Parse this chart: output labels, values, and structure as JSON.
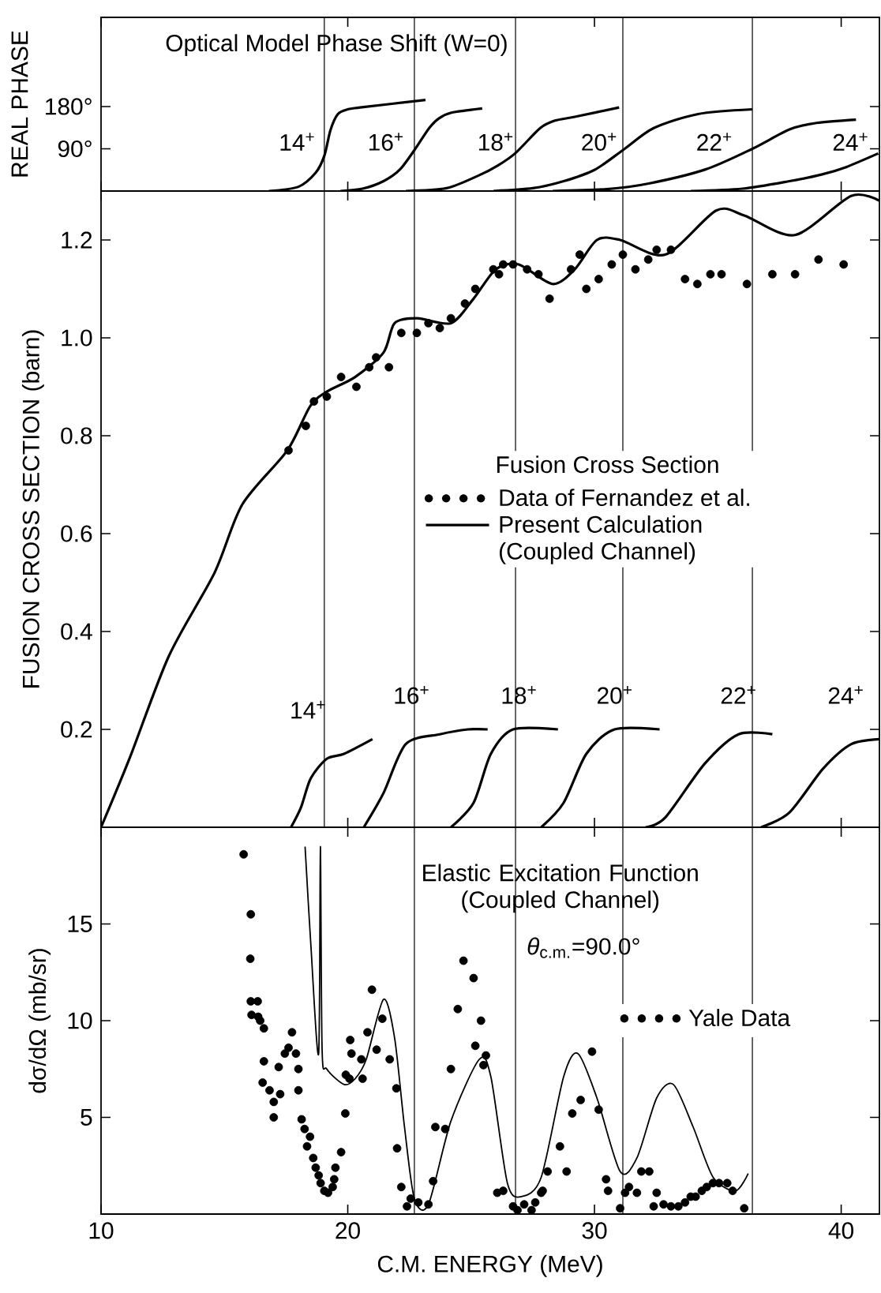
{
  "chart_data": [
    {
      "type": "line",
      "title": "Optical Model Phase Shift (W=0)",
      "ylabel": "REAL PHASE",
      "xlim": [
        10,
        41.55
      ],
      "ylim": [
        0,
        370
      ],
      "xticks": [
        10,
        20,
        30,
        40
      ],
      "yticks": [
        {
          "value": 90,
          "label": "90°"
        },
        {
          "value": 180,
          "label": "180°"
        }
      ],
      "tick_labels": "y",
      "annotations": [
        "14$^{+}$",
        "16$^{+}$",
        "18$^{+}$",
        "20$^{+}$",
        "22$^{+}$",
        "24$^{+}$"
      ],
      "ref_lines": [
        {
          "axis": "x",
          "value": 19.05
        },
        {
          "axis": "x",
          "value": 22.7
        },
        {
          "axis": "x",
          "value": 26.8
        },
        {
          "axis": "x",
          "value": 31.15
        },
        {
          "axis": "x",
          "value": 36.4
        }
      ],
      "series": [
        {
          "color": "#000000",
          "x": [
            16.8,
            18.0,
            18.7,
            19.05,
            19.3,
            19.6,
            20.0,
            20.5,
            23.15
          ],
          "values": [
            0,
            9,
            39,
            75,
            130,
            164,
            174,
            178,
            194
          ]
        },
        {
          "color": "#000000",
          "x": [
            19.7,
            20.6,
            21.45,
            22.1,
            22.7,
            23.3,
            23.7,
            24.2,
            25.45
          ],
          "values": [
            0,
            5,
            21,
            45,
            87,
            134,
            155,
            167,
            176
          ]
        },
        {
          "color": "#000000",
          "x": [
            22.35,
            24.0,
            25.3,
            26.1,
            26.8,
            27.8,
            28.4,
            29.2,
            31.0
          ],
          "values": [
            0,
            6,
            33,
            55,
            81,
            134,
            150,
            158,
            178
          ]
        },
        {
          "color": "#000000",
          "x": [
            25.9,
            27.5,
            28.75,
            30.0,
            31.15,
            32.4,
            34.2,
            36.4
          ],
          "values": [
            0,
            6,
            21,
            45,
            87,
            134,
            164,
            174
          ]
        },
        {
          "color": "#000000",
          "x": [
            28.3,
            30.5,
            32.2,
            34.5,
            36.4,
            37.9,
            39.0,
            40.6
          ],
          "values": [
            0,
            4,
            16,
            46,
            90,
            131,
            145,
            152
          ]
        },
        {
          "color": "#000000",
          "x": [
            33.9,
            36.0,
            37.9,
            39.2,
            40.2,
            41.5
          ],
          "values": [
            0,
            5,
            21,
            35,
            51,
            80
          ]
        }
      ]
    },
    {
      "type": "line",
      "ylabel": "FUSION CROSS SECTION (barn)",
      "legend_title": "Fusion Cross Section",
      "legend": "right",
      "xlim": [
        10,
        41.55
      ],
      "ylim": [
        0,
        1.3
      ],
      "xticks": [
        10,
        20,
        30,
        40
      ],
      "yticks": [
        {
          "value": 0.2,
          "label": "0.2"
        },
        {
          "value": 0.4,
          "label": "0.4"
        },
        {
          "value": 0.6,
          "label": "0.6"
        },
        {
          "value": 0.8,
          "label": "0.8"
        },
        {
          "value": 1.0,
          "label": "1.0"
        },
        {
          "value": 1.2,
          "label": "1.2"
        }
      ],
      "tick_labels": "y",
      "annotations": [
        "14$^{+}$",
        "16$^{+}$",
        "18$^{+}$",
        "20$^{+}$",
        "22$^{+}$",
        "24$^{+}$"
      ],
      "ref_lines": [
        {
          "axis": "x",
          "value": 19.05
        },
        {
          "axis": "x",
          "value": 22.7
        },
        {
          "axis": "x",
          "value": 26.8
        },
        {
          "axis": "x",
          "value": 31.15
        },
        {
          "axis": "x",
          "value": 36.4
        }
      ],
      "series": [
        {
          "name": "Data of Fernandez et al.",
          "type": "scatter",
          "marker": "circle",
          "color": "#000000",
          "x": [
            17.6,
            18.3,
            18.63,
            19.15,
            19.73,
            20.35,
            20.87,
            21.15,
            21.67,
            22.17,
            22.8,
            23.27,
            23.73,
            24.18,
            24.75,
            25.17,
            25.9,
            26.13,
            26.3,
            26.7,
            27.27,
            27.73,
            28.18,
            29.05,
            29.4,
            29.67,
            30.17,
            30.7,
            31.15,
            31.66,
            32.18,
            32.52,
            33.1,
            33.67,
            34.17,
            34.7,
            35.15,
            36.18,
            37.21,
            38.13,
            39.08,
            40.1
          ],
          "values": [
            0.77,
            0.82,
            0.87,
            0.88,
            0.92,
            0.9,
            0.94,
            0.96,
            0.94,
            1.01,
            1.01,
            1.03,
            1.02,
            1.04,
            1.07,
            1.1,
            1.14,
            1.13,
            1.15,
            1.15,
            1.14,
            1.13,
            1.08,
            1.14,
            1.17,
            1.1,
            1.12,
            1.15,
            1.17,
            1.14,
            1.16,
            1.18,
            1.18,
            1.12,
            1.11,
            1.13,
            1.13,
            1.11,
            1.13,
            1.13,
            1.16,
            1.15
          ]
        },
        {
          "name": "Present Calculation (Coupled Channel)",
          "color": "#000000",
          "x": [
            10.0,
            11.15,
            12.75,
            14.6,
            15.73,
            17.55,
            18.47,
            19.15,
            20.3,
            21.45,
            21.9,
            22.81,
            24.18,
            25.1,
            26.0,
            26.93,
            28.3,
            29.2,
            30.1,
            31.04,
            32.87,
            34.93,
            36.07,
            38.12,
            40.4,
            41.55
          ],
          "values": [
            0,
            0.14,
            0.35,
            0.52,
            0.66,
            0.77,
            0.86,
            0.89,
            0.92,
            0.97,
            1.03,
            1.04,
            1.03,
            1.08,
            1.14,
            1.15,
            1.11,
            1.14,
            1.2,
            1.2,
            1.17,
            1.26,
            1.25,
            1.21,
            1.29,
            1.28
          ]
        },
        {
          "color": "#000000",
          "x": [
            17.7,
            18.1,
            18.5,
            19.15,
            19.85,
            21.0
          ],
          "values": [
            0,
            0.04,
            0.1,
            0.14,
            0.15,
            0.18
          ]
        },
        {
          "color": "#000000",
          "x": [
            20.65,
            21.45,
            22.35,
            23.73,
            24.87,
            25.67
          ],
          "values": [
            0,
            0.07,
            0.17,
            0.19,
            0.2,
            0.2
          ]
        },
        {
          "color": "#000000",
          "x": [
            24.18,
            25.1,
            25.8,
            26.7,
            28.52
          ],
          "values": [
            0,
            0.05,
            0.15,
            0.2,
            0.2
          ]
        },
        {
          "color": "#000000",
          "x": [
            27.84,
            28.75,
            29.67,
            30.81,
            32.64
          ],
          "values": [
            0,
            0.05,
            0.15,
            0.2,
            0.2
          ]
        },
        {
          "color": "#000000",
          "x": [
            32.07,
            32.87,
            34.47,
            35.84,
            37.21
          ],
          "values": [
            0,
            0.02,
            0.13,
            0.19,
            0.19
          ]
        },
        {
          "color": "#000000",
          "x": [
            36.75,
            37.9,
            39.27,
            40.41,
            41.55
          ],
          "values": [
            0,
            0.03,
            0.12,
            0.17,
            0.18
          ]
        }
      ]
    },
    {
      "type": "line",
      "title": "Elastic Excitation Function (Coupled Channel)",
      "annotations": [
        "*θ*$_{c.m.}$=90.0°"
      ],
      "xlabel": "C.M. ENERGY (MeV)",
      "ylabel": "dσ/dΩ (mb/sr)",
      "legend": "right",
      "xlim": [
        10,
        41.55
      ],
      "ylim": [
        0,
        20
      ],
      "xticks": [
        10,
        20,
        30,
        40
      ],
      "yticks": [
        5,
        10,
        15
      ],
      "ref_lines": [
        {
          "axis": "x",
          "value": 22.7
        },
        {
          "axis": "x",
          "value": 26.8
        },
        {
          "axis": "x",
          "value": 31.15
        },
        {
          "axis": "x",
          "value": 36.4
        }
      ],
      "series": [
        {
          "color": "#000000",
          "x": [
            18.27,
            18.5,
            18.82,
            18.89,
            18.96,
            19.15,
            19.85,
            20.3,
            20.75,
            21.45,
            21.9,
            22.3,
            22.7,
            23.27,
            24.18,
            25.33,
            25.8,
            26.47,
            27.04,
            27.84,
            28.75,
            29.33,
            30.1,
            31.04,
            31.72,
            32.52,
            33.2,
            34.0,
            34.81,
            35.72,
            36.23
          ],
          "values": [
            19.0,
            14,
            8.3,
            19.0,
            8.5,
            7.5,
            6.7,
            7.0,
            8.0,
            11.1,
            9.1,
            4.5,
            0.8,
            0.5,
            4.8,
            8.0,
            7.1,
            1.6,
            0.9,
            1.9,
            7.1,
            8.3,
            6.0,
            2.2,
            2.9,
            6.0,
            6.7,
            4.5,
            1.9,
            1.2,
            2.1
          ]
        },
        {
          "name": "Yale Data",
          "type": "scatter",
          "marker": "circle",
          "color": "#000000",
          "x": [
            15.78,
            16.07,
            16.05,
            16.07,
            16.35,
            16.1,
            16.37,
            16.45,
            16.6,
            16.6,
            16.55,
            16.83,
            17.0,
            17.0,
            17.26,
            17.2,
            17.45,
            17.74,
            17.6,
            17.9,
            18.0,
            18.0,
            18.13,
            18.25,
            18.47,
            18.35,
            18.6,
            18.7,
            18.82,
            18.9,
            19.05,
            19.2,
            19.39,
            19.45,
            19.5,
            19.73,
            19.9,
            19.92,
            20.07,
            20.1,
            20.15,
            20.6,
            20.55,
            20.8,
            20.98,
            21.17,
            21.4,
            21.7,
            21.97,
            22.0,
            22.17,
            22.4,
            22.55,
            22.86,
            23.27,
            23.46,
            23.55,
            23.95,
            24.18,
            24.46,
            24.69,
            25.1,
            25.17,
            25.4,
            25.5,
            25.6,
            26.06,
            26.3,
            26.7,
            26.88,
            27.15,
            27.45,
            27.6,
            27.84,
            27.9,
            28.1,
            28.6,
            28.87,
            29.1,
            29.44,
            29.9,
            30.17,
            30.47,
            30.55,
            31.04,
            31.24,
            31.4,
            31.72,
            31.9,
            32.22,
            32.52,
            32.4,
            32.8,
            33.1,
            33.4,
            33.67,
            33.9,
            34.1,
            34.35,
            34.55,
            34.8,
            35.05,
            35.38,
            35.6,
            36.07
          ],
          "values": [
            18.6,
            15.5,
            13.2,
            11.0,
            11.0,
            10.3,
            10.2,
            10.0,
            9.6,
            7.9,
            6.8,
            6.4,
            5.8,
            5.0,
            6.2,
            7.6,
            8.3,
            9.4,
            8.6,
            8.3,
            7.5,
            6.4,
            4.9,
            4.4,
            4.0,
            3.5,
            2.9,
            2.4,
            2.0,
            1.6,
            1.2,
            1.1,
            1.4,
            1.8,
            2.4,
            3.2,
            5.2,
            7.2,
            7.0,
            9.0,
            8.3,
            7.0,
            8.0,
            9.4,
            11.6,
            8.5,
            10.1,
            8.0,
            6.5,
            3.4,
            1.4,
            0.4,
            0.8,
            0.6,
            0.5,
            1.7,
            4.5,
            4.4,
            7.5,
            10.6,
            13.1,
            12.2,
            8.7,
            10.0,
            7.7,
            8.2,
            1.1,
            1.2,
            0.4,
            0.2,
            0.5,
            0.2,
            0.6,
            1.1,
            1.2,
            2.2,
            3.5,
            2.2,
            5.2,
            5.9,
            8.4,
            5.4,
            1.8,
            1.2,
            0.3,
            1.1,
            1.4,
            1.1,
            2.2,
            2.2,
            1.1,
            0.4,
            0.5,
            0.4,
            0.4,
            0.6,
            0.9,
            0.9,
            1.2,
            1.4,
            1.6,
            1.6,
            1.6,
            1.2,
            0.3
          ]
        }
      ]
    }
  ]
}
